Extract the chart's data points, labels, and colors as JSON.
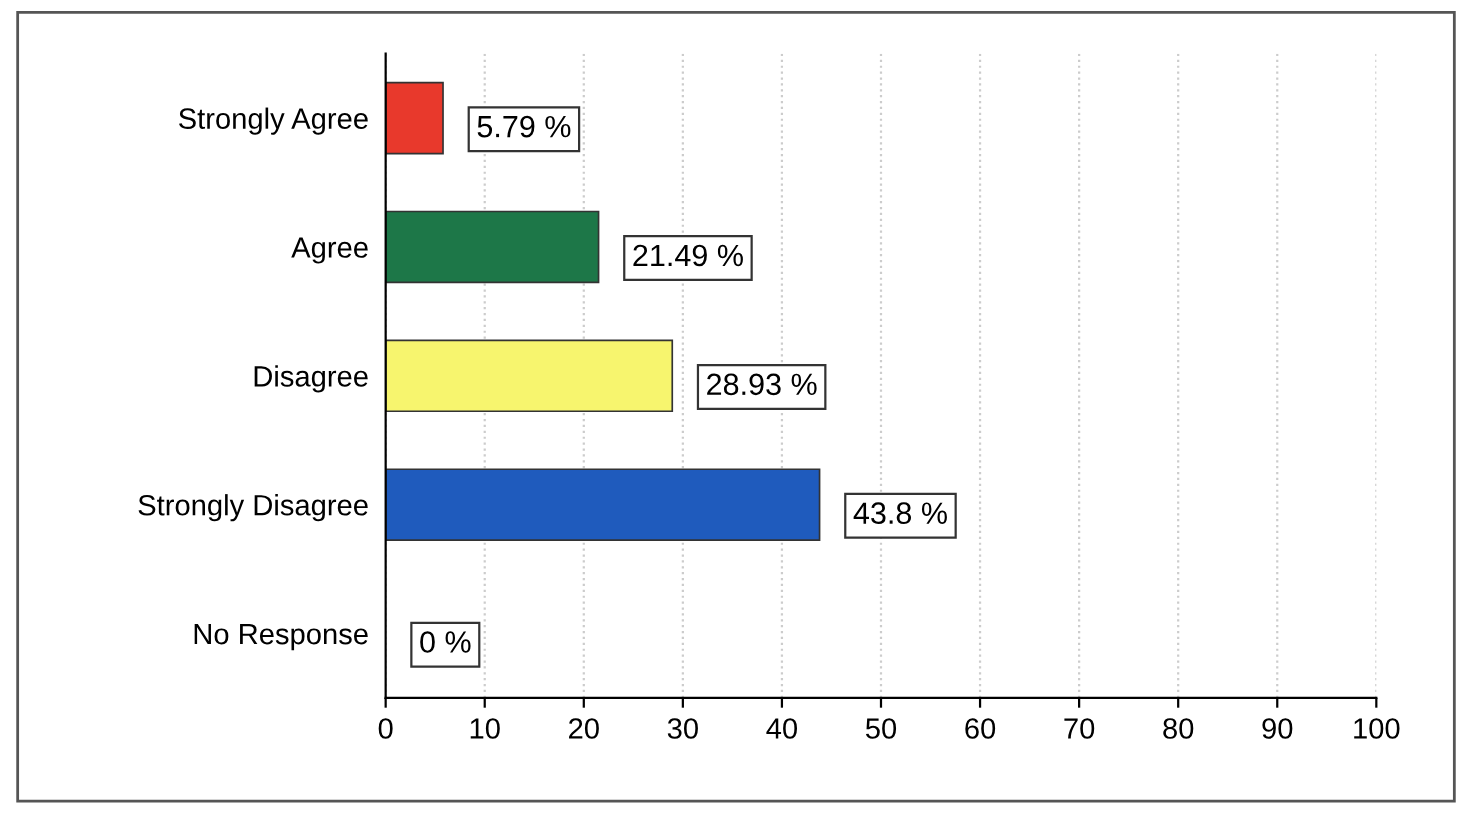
{
  "chart_data": {
    "type": "bar",
    "orientation": "horizontal",
    "categories": [
      "Strongly Agree",
      "Agree",
      "Disagree",
      "Strongly Disagree",
      "No Response"
    ],
    "values": [
      5.79,
      21.49,
      28.93,
      43.8,
      0
    ],
    "colors": [
      "#e8392c",
      "#1d7748",
      "#f7f56e",
      "#1f5bbd",
      "#9a9a9a"
    ],
    "value_labels": [
      "5.79 %",
      "21.49 %",
      "28.93 %",
      "43.8 %",
      "0 %"
    ],
    "xlim": [
      0,
      100
    ],
    "xticks": [
      0,
      10,
      20,
      30,
      40,
      50,
      60,
      70,
      80,
      90,
      100
    ],
    "grid": "x"
  }
}
